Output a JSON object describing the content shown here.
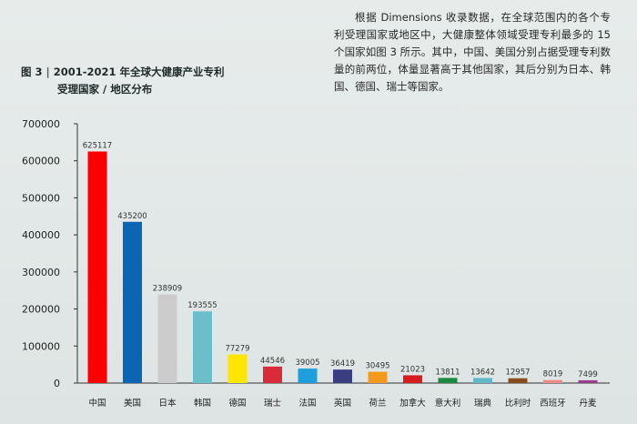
{
  "caption": {
    "figure_no": "图 3",
    "separator": "|",
    "title_line1": "2001-2021 年全球大健康产业专利",
    "title_line2": "受理国家 / 地区分布"
  },
  "body_text": "根据 Dimensions 收录数据，在全球范围内的各个专利受理国家或地区中，大健康整体领域受理专利最多的 15 个国家如图 3 所示。其中，中国、美国分别占据受理专利数量的前两位，体量显著高于其他国家，其后分别为日本、韩国、德国、瑞士等国家。",
  "chart_data": {
    "type": "bar",
    "title": "2001-2021 年全球大健康产业专利受理国家 / 地区分布",
    "xlabel": "",
    "ylabel": "",
    "ylim": [
      0,
      700000
    ],
    "yticks": [
      0,
      100000,
      200000,
      300000,
      400000,
      500000,
      600000,
      700000
    ],
    "ytick_labels": [
      "0",
      "100000",
      "200000",
      "300000",
      "400000",
      "500000",
      "600000",
      "700000"
    ],
    "grid": false,
    "categories": [
      "中国",
      "美国",
      "日本",
      "韩国",
      "德国",
      "瑞士",
      "法国",
      "英国",
      "荷兰",
      "加拿大",
      "意大利",
      "瑞典",
      "比利时",
      "西班牙",
      "丹麦"
    ],
    "values": [
      625117,
      435200,
      238909,
      193555,
      77279,
      44546,
      39005,
      36419,
      30495,
      21023,
      13811,
      13642,
      12957,
      8019,
      7499
    ],
    "colors": [
      "#ff0000",
      "#0a66b3",
      "#cccccc",
      "#6bbfca",
      "#ffe600",
      "#d92b3a",
      "#1e9fdc",
      "#3a3d82",
      "#f39a1e",
      "#d61c1c",
      "#1a8a43",
      "#5fb8c8",
      "#8a4b1e",
      "#f08a8a",
      "#9b3b8f"
    ]
  }
}
